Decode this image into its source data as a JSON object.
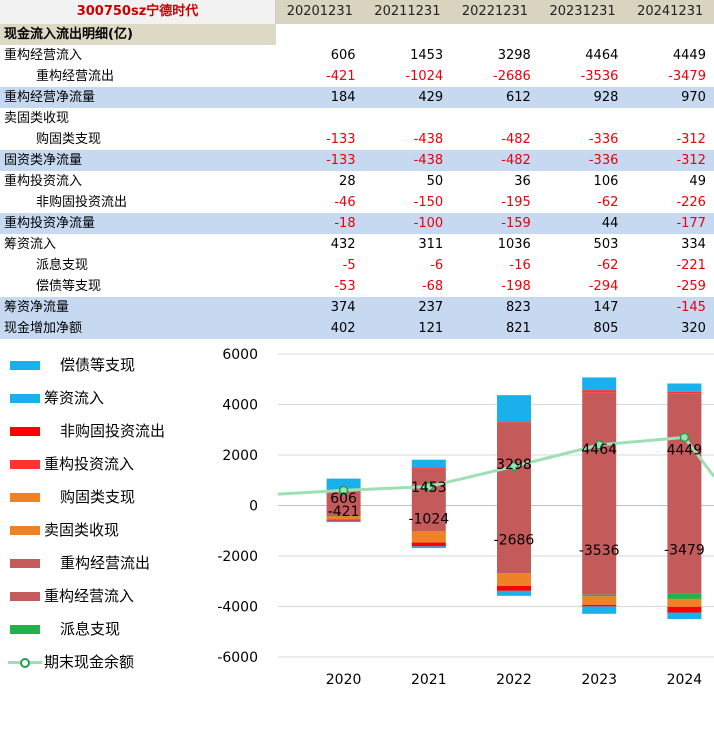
{
  "table": {
    "title": "300750sz宁德时代",
    "years": [
      "20201231",
      "20211231",
      "20221231",
      "20231231",
      "20241231"
    ],
    "section_title": "现金流入流出明细(亿)",
    "rows": [
      {
        "label": "重构经营流入",
        "values": [
          "606",
          "1453",
          "3298",
          "4464",
          "4449"
        ]
      },
      {
        "label": "重构经营流出",
        "values": [
          "-421",
          "-1024",
          "-2686",
          "-3536",
          "-3479"
        ]
      },
      {
        "label": "重构经营净流量",
        "values": [
          "184",
          "429",
          "612",
          "928",
          "970"
        ]
      },
      {
        "label": "卖固类收现",
        "values": [
          "",
          "",
          "",
          "",
          ""
        ]
      },
      {
        "label": "购固类支现",
        "values": [
          "-133",
          "-438",
          "-482",
          "-336",
          "-312"
        ]
      },
      {
        "label": "固资类净流量",
        "values": [
          "-133",
          "-438",
          "-482",
          "-336",
          "-312"
        ]
      },
      {
        "label": "重构投资流入",
        "values": [
          "28",
          "50",
          "36",
          "106",
          "49"
        ]
      },
      {
        "label": "非购固投资流出",
        "values": [
          "-46",
          "-150",
          "-195",
          "-62",
          "-226"
        ]
      },
      {
        "label": "重构投资净流量",
        "values": [
          "-18",
          "-100",
          "-159",
          "44",
          "-177"
        ]
      },
      {
        "label": "筹资流入",
        "values": [
          "432",
          "311",
          "1036",
          "503",
          "334"
        ]
      },
      {
        "label": "派息支现",
        "values": [
          "-5",
          "-6",
          "-16",
          "-62",
          "-221"
        ]
      },
      {
        "label": "偿债等支现",
        "values": [
          "-53",
          "-68",
          "-198",
          "-294",
          "-259"
        ]
      },
      {
        "label": "筹资净流量",
        "values": [
          "374",
          "237",
          "823",
          "147",
          "-145"
        ]
      },
      {
        "label": "现金增加净额",
        "values": [
          "402",
          "121",
          "821",
          "805",
          "320"
        ]
      }
    ]
  },
  "legend": [
    {
      "label": "偿债等支现",
      "color": "#1ab0ec"
    },
    {
      "label": "筹资流入",
      "color": "#1ab0ec"
    },
    {
      "label": "非购固投资流出",
      "color": "#ff0000"
    },
    {
      "label": "重构投资流入",
      "color": "#ff3333"
    },
    {
      "label": "购固类支现",
      "color": "#f08226"
    },
    {
      "label": "卖固类收现",
      "color": "#f08226"
    },
    {
      "label": "重构经营流出",
      "color": "#c55a5a"
    },
    {
      "label": "重构经营流入",
      "color": "#c55a5a"
    },
    {
      "label": "派息支现",
      "color": "#22b14c"
    },
    {
      "label": "期末现金余额",
      "color": "#9ee0b4"
    }
  ],
  "chart_data": {
    "type": "bar",
    "stacked": true,
    "categories": [
      "2020",
      "2021",
      "2022",
      "2023",
      "2024"
    ],
    "ylim": [
      -6000,
      6000
    ],
    "yticks": [
      6000,
      4000,
      2000,
      0,
      -2000,
      -4000,
      -6000
    ],
    "grid": true,
    "legend_position": "left",
    "series": [
      {
        "name": "重构经营流入",
        "color": "#c55a5a",
        "values": [
          606,
          1453,
          3298,
          4464,
          4449
        ]
      },
      {
        "name": "卖固类收现",
        "color": "#f08226",
        "values": [
          0,
          0,
          0,
          0,
          0
        ]
      },
      {
        "name": "重构投资流入",
        "color": "#ff3333",
        "values": [
          28,
          50,
          36,
          106,
          49
        ]
      },
      {
        "name": "筹资流入",
        "color": "#1ab0ec",
        "values": [
          432,
          311,
          1036,
          503,
          334
        ]
      },
      {
        "name": "重构经营流出",
        "color": "#c55a5a",
        "values": [
          -421,
          -1024,
          -2686,
          -3536,
          -3479
        ]
      },
      {
        "name": "派息支现",
        "color": "#22b14c",
        "values": [
          -5,
          -6,
          -16,
          -62,
          -221
        ]
      },
      {
        "name": "购固类支现",
        "color": "#f08226",
        "values": [
          -133,
          -438,
          -482,
          -336,
          -312
        ]
      },
      {
        "name": "非购固投资流出",
        "color": "#ff0000",
        "values": [
          -46,
          -150,
          -195,
          -62,
          -226
        ]
      },
      {
        "name": "偿债等支现",
        "color": "#1ab0ec",
        "values": [
          -53,
          -68,
          -198,
          -294,
          -259
        ]
      }
    ],
    "line": {
      "name": "期末现金余额",
      "color": "#9ee0b4",
      "values": [
        600,
        750,
        1550,
        2400,
        2700
      ]
    },
    "data_labels": [
      {
        "category": "2020",
        "texts": [
          "606",
          "-421"
        ],
        "values": [
          606,
          -421
        ]
      },
      {
        "category": "2021",
        "texts": [
          "1453",
          "-1024"
        ],
        "values": [
          1453,
          -1024
        ]
      },
      {
        "category": "2022",
        "texts": [
          "3298",
          "-2686"
        ],
        "values": [
          3298,
          -2686
        ]
      },
      {
        "category": "2023",
        "texts": [
          "4464",
          "-3536"
        ],
        "values": [
          4464,
          -3536
        ]
      },
      {
        "category": "2024",
        "texts": [
          "4449",
          "-3479"
        ],
        "values": [
          4449,
          -3479
        ]
      }
    ]
  }
}
